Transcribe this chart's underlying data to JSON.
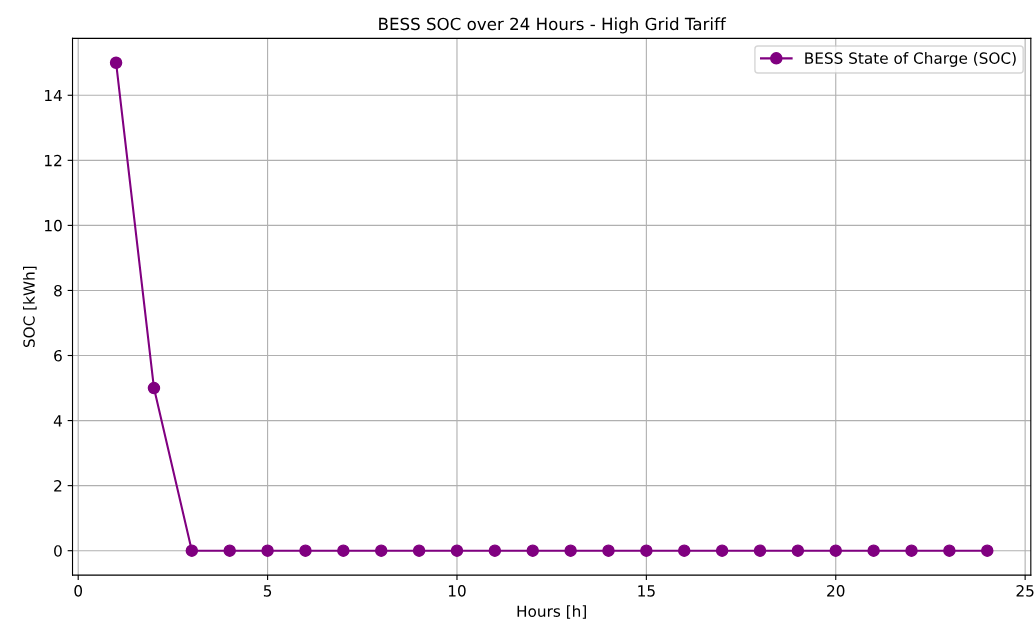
{
  "chart_data": {
    "type": "line",
    "title": "BESS SOC over 24 Hours - High Grid Tariff",
    "xlabel": "Hours [h]",
    "ylabel": "SOC [kWh]",
    "x": [
      1,
      2,
      3,
      4,
      5,
      6,
      7,
      8,
      9,
      10,
      11,
      12,
      13,
      14,
      15,
      16,
      17,
      18,
      19,
      20,
      21,
      22,
      23,
      24
    ],
    "series": [
      {
        "name": "BESS State of Charge (SOC)",
        "color": "#800080",
        "values": [
          15,
          5,
          0,
          0,
          0,
          0,
          0,
          0,
          0,
          0,
          0,
          0,
          0,
          0,
          0,
          0,
          0,
          0,
          0,
          0,
          0,
          0,
          0,
          0
        ]
      }
    ],
    "xlim": [
      -0.15,
      25.15
    ],
    "xticks": [
      0,
      5,
      10,
      15,
      20,
      25
    ],
    "ylim": [
      -0.75,
      15.75
    ],
    "yticks": [
      0,
      2,
      4,
      6,
      8,
      10,
      12,
      14
    ],
    "grid": true,
    "legend": "top right",
    "marker": "circle",
    "line_style": "solid"
  }
}
